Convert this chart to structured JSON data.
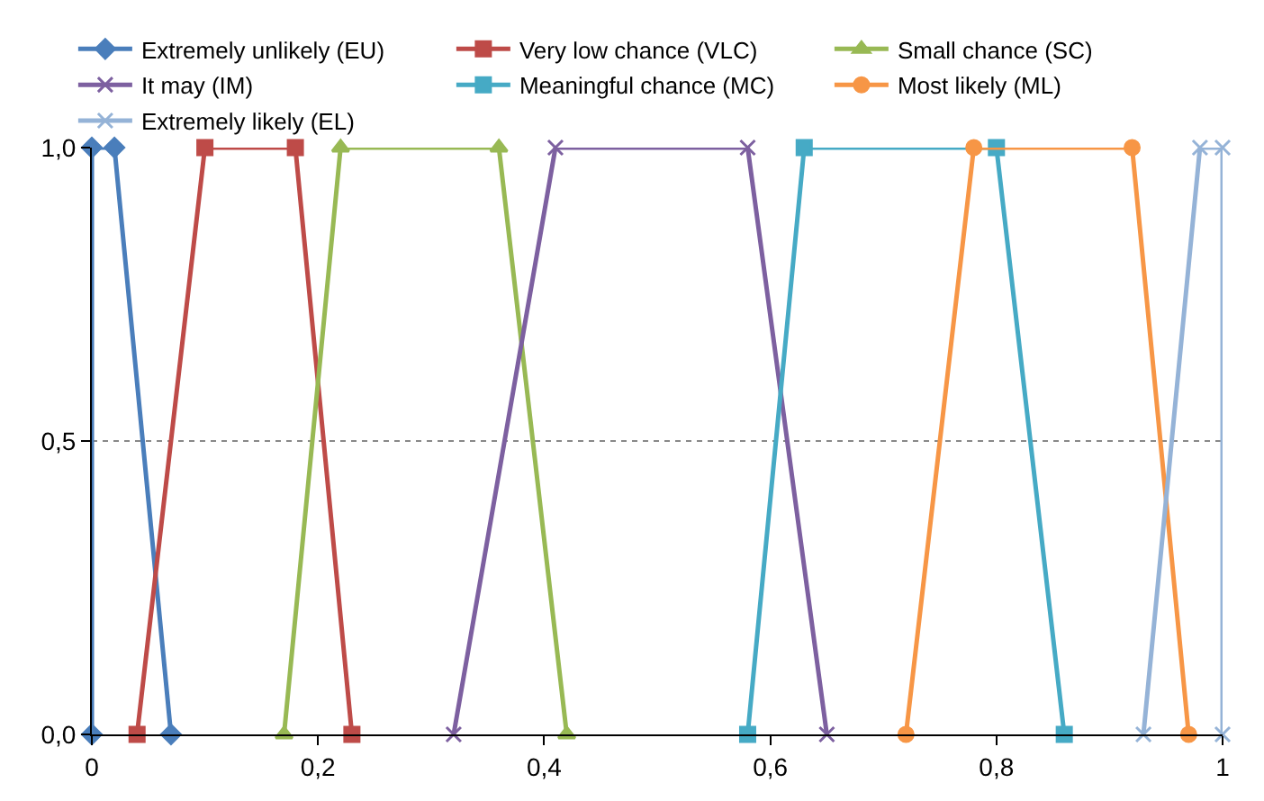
{
  "chart_data": {
    "type": "line",
    "series": [
      {
        "name": "Extremely unlikely (EU)",
        "color": "#4a7ebb",
        "marker": "diamond",
        "x": [
          0,
          0,
          0.02,
          0.07
        ],
        "values": [
          0,
          1,
          1,
          0
        ]
      },
      {
        "name": "Very low chance (VLC)",
        "color": "#be4b48",
        "marker": "square",
        "x": [
          0.04,
          0.1,
          0.18,
          0.23
        ],
        "values": [
          0,
          1,
          1,
          0
        ]
      },
      {
        "name": "Small chance (SC)",
        "color": "#98b954",
        "marker": "triangle",
        "x": [
          0.17,
          0.22,
          0.36,
          0.42
        ],
        "values": [
          0,
          1,
          1,
          0
        ]
      },
      {
        "name": "It may (IM)",
        "color": "#7d60a0",
        "marker": "cross",
        "x": [
          0.32,
          0.41,
          0.58,
          0.65
        ],
        "values": [
          0,
          1,
          1,
          0
        ]
      },
      {
        "name": "Meaningful chance (MC)",
        "color": "#46aac5",
        "marker": "square",
        "x": [
          0.58,
          0.63,
          0.8,
          0.86
        ],
        "values": [
          0,
          1,
          1,
          0
        ]
      },
      {
        "name": "Most likely (ML)",
        "color": "#f79646",
        "marker": "circle",
        "x": [
          0.72,
          0.78,
          0.92,
          0.97
        ],
        "values": [
          0,
          1,
          1,
          0
        ]
      },
      {
        "name": "Extremely likely (EL)",
        "color": "#95b3d7",
        "marker": "cross",
        "x": [
          0.93,
          0.98,
          1,
          1
        ],
        "values": [
          0,
          1,
          1,
          0
        ]
      }
    ],
    "xlim": [
      0,
      1
    ],
    "xticks": [
      0,
      {
        "value": 0.2,
        "label": "0,2"
      },
      {
        "value": 0.4,
        "label": "0,4"
      },
      {
        "value": 0.6,
        "label": "0,6"
      },
      {
        "value": 0.8,
        "label": "0,8"
      },
      1
    ],
    "ylim": [
      0,
      1
    ],
    "yticks": [
      {
        "value": 0,
        "label": "0,0"
      },
      {
        "value": 0.5,
        "label": "0,5"
      },
      {
        "value": 1,
        "label": "1,0"
      }
    ],
    "grid": "y",
    "legend": "top"
  }
}
